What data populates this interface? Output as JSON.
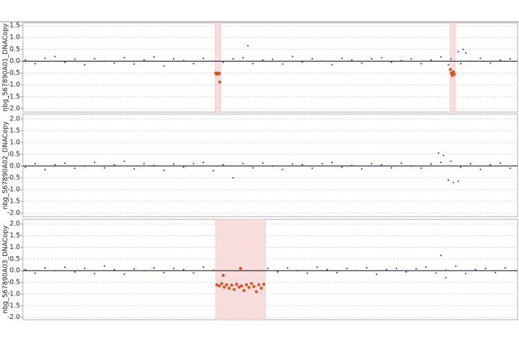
{
  "chart_data": [
    {
      "type": "scatter",
      "ylabel": "nbg_567890A01_DNACopy",
      "xlim": [
        0,
        1000
      ],
      "ylim": [
        -2.15,
        1.62
      ],
      "yticks": [
        {
          "value": 1.5,
          "label": "1.5"
        },
        {
          "value": 1,
          "label": "1.0"
        },
        0.5,
        {
          "value": 0,
          "label": "0.0"
        },
        -0.5,
        {
          "value": -1,
          "label": "-1.0"
        },
        -1.5,
        {
          "value": -2,
          "label": "-2.0"
        }
      ],
      "grid": true,
      "highlight_color": "#fadede",
      "highlights": [
        [
          389,
          400
        ],
        [
          864,
          874
        ]
      ],
      "series": [
        {
          "color": "#2233ee",
          "x": [
            5,
            25,
            45,
            65,
            85,
            105,
            125,
            145,
            165,
            185,
            205,
            225,
            245,
            265,
            285,
            305,
            325,
            345,
            365,
            385,
            405,
            425,
            445,
            465,
            485,
            505,
            525,
            545,
            565,
            585,
            605,
            625,
            645,
            665,
            685,
            705,
            725,
            745,
            765,
            785,
            805,
            825,
            845,
            865,
            885,
            905,
            925,
            945,
            965,
            985,
            455,
            880,
            890,
            895,
            860
          ],
          "values": [
            0.05,
            -0.1,
            0.12,
            0.2,
            -0.05,
            0.08,
            -0.15,
            0.1,
            0.0,
            -0.08,
            0.15,
            -0.12,
            0.05,
            0.18,
            -0.2,
            0.1,
            0.02,
            -0.1,
            0.12,
            0.0,
            -0.05,
            0.1,
            0.15,
            -0.1,
            0.05,
            0.08,
            -0.12,
            0.2,
            -0.03,
            0.1,
            0.0,
            -0.15,
            0.12,
            0.05,
            -0.08,
            0.1,
            0.15,
            -0.05,
            0.02,
            0.1,
            -0.1,
            0.05,
            0.18,
            0.1,
            -0.1,
            0.0,
            0.12,
            -0.08,
            0.05,
            0.1,
            0.65,
            0.4,
            0.5,
            0.35,
            -0.15
          ]
        },
        {
          "color": "#d9531e",
          "x": [
            390,
            392,
            395,
            397,
            398,
            864,
            866,
            868,
            870,
            872
          ],
          "values": [
            -0.5,
            -0.55,
            -0.5,
            -0.52,
            -0.88,
            -0.35,
            -0.5,
            -0.6,
            -0.45,
            -0.55
          ]
        }
      ]
    },
    {
      "type": "scatter",
      "ylabel": "nbg_567890A02_DNACopy",
      "xlim": [
        0,
        1000
      ],
      "ylim": [
        -2.15,
        2.2
      ],
      "yticks": [
        {
          "value": 2,
          "label": "2.0"
        },
        1.5,
        {
          "value": 1,
          "label": "1.0"
        },
        0.5,
        {
          "value": 0,
          "label": "0.0"
        },
        -0.5,
        {
          "value": -1,
          "label": "-1.0"
        },
        -1.5,
        {
          "value": -2,
          "label": "-2.0"
        }
      ],
      "grid": true,
      "highlight_color": "#fadede",
      "highlights": [],
      "series": [
        {
          "color": "#2233ee",
          "x": [
            5,
            25,
            45,
            65,
            85,
            105,
            125,
            145,
            165,
            185,
            205,
            225,
            245,
            265,
            285,
            305,
            325,
            345,
            365,
            385,
            405,
            425,
            445,
            465,
            485,
            505,
            525,
            545,
            565,
            585,
            605,
            625,
            645,
            665,
            685,
            705,
            725,
            745,
            765,
            785,
            805,
            825,
            845,
            865,
            885,
            905,
            925,
            945,
            965,
            985,
            840,
            850,
            860,
            870,
            880
          ],
          "values": [
            -0.05,
            0.1,
            -0.15,
            0.05,
            0.12,
            -0.1,
            0.0,
            0.15,
            -0.08,
            0.05,
            0.2,
            -0.12,
            0.1,
            0.02,
            -0.18,
            0.08,
            -0.05,
            0.1,
            0.15,
            -0.2,
            0.05,
            -0.5,
            0.1,
            -0.08,
            0.12,
            0.0,
            -0.15,
            0.08,
            0.05,
            -0.1,
            0.1,
            0.15,
            -0.05,
            0.02,
            -0.12,
            0.1,
            0.05,
            -0.08,
            0.12,
            0.0,
            -0.1,
            0.08,
            0.15,
            0.2,
            -0.05,
            0.1,
            -0.15,
            0.05,
            0.12,
            -0.1,
            0.55,
            0.45,
            -0.6,
            -0.7,
            -0.65
          ]
        }
      ]
    },
    {
      "type": "scatter",
      "ylabel": "nbg_567890A03_DNACopy",
      "xlim": [
        0,
        1000
      ],
      "ylim": [
        -2.1,
        2.2
      ],
      "yticks": [
        {
          "value": 2,
          "label": "2.0"
        },
        1.5,
        {
          "value": 1,
          "label": "1.0"
        },
        0.5,
        {
          "value": 0,
          "label": "0.0"
        },
        -0.5,
        {
          "value": -1,
          "label": "-1.0"
        },
        -1.5,
        {
          "value": -2,
          "label": "-2.0"
        }
      ],
      "grid": true,
      "highlight_color": "#fadede",
      "highlights": [
        [
          390,
          490
        ]
      ],
      "series": [
        {
          "color": "#2233ee",
          "x": [
            5,
            25,
            45,
            65,
            85,
            105,
            125,
            145,
            165,
            185,
            205,
            225,
            245,
            265,
            285,
            305,
            325,
            345,
            365,
            385,
            495,
            515,
            535,
            555,
            575,
            595,
            615,
            635,
            655,
            675,
            695,
            715,
            735,
            755,
            775,
            795,
            815,
            835,
            855,
            875,
            895,
            915,
            935,
            955,
            975,
            995,
            845,
            855
          ],
          "values": [
            0.05,
            -0.1,
            0.12,
            0.0,
            0.15,
            -0.05,
            0.1,
            -0.12,
            0.2,
            0.05,
            -0.15,
            0.08,
            0.0,
            0.12,
            -0.08,
            0.1,
            0.05,
            -0.1,
            0.15,
            0.02,
            0.1,
            -0.05,
            0.12,
            0.0,
            -0.1,
            0.15,
            0.05,
            -0.08,
            0.1,
            0.0,
            0.12,
            -0.15,
            0.05,
            0.1,
            -0.05,
            0.08,
            0.15,
            -0.1,
            0.02,
            0.2,
            -0.12,
            0.05,
            0.1,
            -0.08,
            0.12,
            0.0,
            0.65,
            -0.3
          ]
        },
        {
          "color": "#d9531e",
          "x": [
            392,
            397,
            402,
            407,
            412,
            417,
            422,
            427,
            432,
            437,
            442,
            447,
            452,
            457,
            462,
            467,
            472,
            477,
            482,
            487,
            440,
            405
          ],
          "values": [
            -0.6,
            -0.65,
            -0.55,
            -0.7,
            -0.6,
            -0.75,
            -0.62,
            -0.8,
            -0.58,
            -0.7,
            -0.65,
            -0.85,
            -0.6,
            -0.72,
            -0.55,
            -0.68,
            -0.9,
            -0.6,
            -0.75,
            -0.58,
            0.1,
            -0.2
          ]
        }
      ]
    }
  ]
}
